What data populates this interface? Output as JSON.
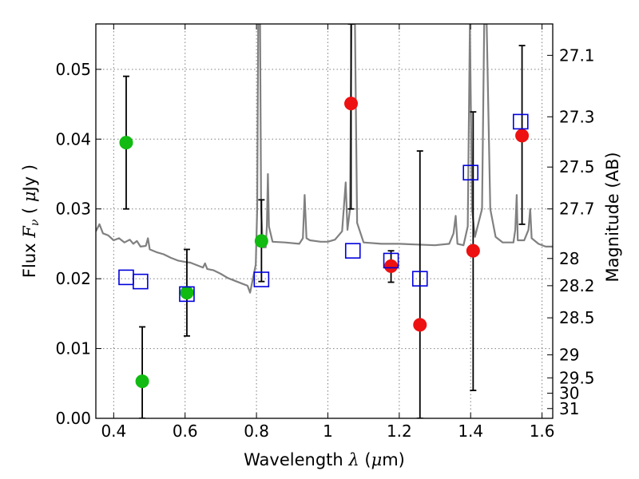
{
  "chart_data": {
    "type": "scatter",
    "title": "",
    "xlabel": "Wavelength  λ (μm)",
    "ylabel_left": "Flux  Fν ( μJy )",
    "ylabel_right": "Magnitude (AB)",
    "xlim": [
      0.35,
      1.63
    ],
    "ylim": [
      0.0,
      0.0565
    ],
    "grid": true,
    "x_ticks": [
      0.4,
      0.6,
      0.8,
      1.0,
      1.2,
      1.4,
      1.6
    ],
    "x_tick_labels": [
      "0.4",
      "0.6",
      "0.8",
      "1",
      "1.2",
      "1.4",
      "1.6"
    ],
    "y_ticks": [
      0.0,
      0.01,
      0.02,
      0.03,
      0.04,
      0.05
    ],
    "y_tick_labels": [
      "0.00",
      "0.01",
      "0.02",
      "0.03",
      "0.04",
      "0.05"
    ],
    "right_ticks": [
      {
        "label": "27.1",
        "flux": 0.052
      },
      {
        "label": "27.3",
        "flux": 0.0432
      },
      {
        "label": "27.5",
        "flux": 0.036
      },
      {
        "label": "27.7",
        "flux": 0.03
      },
      {
        "label": "28",
        "flux": 0.0229
      },
      {
        "label": "28.2",
        "flux": 0.019
      },
      {
        "label": "28.5",
        "flux": 0.0144
      },
      {
        "label": "29",
        "flux": 0.0091
      },
      {
        "label": "29.5",
        "flux": 0.0058
      },
      {
        "label": "30",
        "flux": 0.0036
      },
      {
        "label": "31",
        "flux": 0.0014
      }
    ],
    "colors": {
      "green": "#11bb11",
      "red": "#ee1111",
      "model": "#0000dd",
      "spectrum": "#808080",
      "grid": "#7f7f7f"
    },
    "series": [
      {
        "marker": "green-circle",
        "points": [
          {
            "x": 0.435,
            "y": 0.0395,
            "ylo": 0.03,
            "yhi": 0.049
          },
          {
            "x": 0.48,
            "y": 0.0053,
            "ylo": 0.0,
            "yhi": 0.0131
          },
          {
            "x": 0.605,
            "y": 0.018,
            "ylo": 0.0118,
            "yhi": 0.0242
          },
          {
            "x": 0.814,
            "y": 0.0254,
            "ylo": 0.0196,
            "yhi": 0.0313
          }
        ]
      },
      {
        "marker": "red-circle",
        "points": [
          {
            "x": 1.065,
            "y": 0.0451,
            "ylo": 0.03,
            "yhi": 0.0565
          },
          {
            "x": 1.177,
            "y": 0.0218,
            "ylo": 0.0195,
            "yhi": 0.024
          },
          {
            "x": 1.258,
            "y": 0.0134,
            "ylo": 0.0,
            "yhi": 0.0383
          },
          {
            "x": 1.407,
            "y": 0.024,
            "ylo": 0.004,
            "yhi": 0.0439
          },
          {
            "x": 1.544,
            "y": 0.0405,
            "ylo": 0.0278,
            "yhi": 0.0534
          }
        ]
      },
      {
        "marker": "blue-square",
        "points": [
          {
            "x": 0.435,
            "y": 0.0202
          },
          {
            "x": 0.475,
            "y": 0.0196
          },
          {
            "x": 0.605,
            "y": 0.0178
          },
          {
            "x": 0.814,
            "y": 0.0199
          },
          {
            "x": 1.07,
            "y": 0.024
          },
          {
            "x": 1.177,
            "y": 0.0226
          },
          {
            "x": 1.258,
            "y": 0.02
          },
          {
            "x": 1.4,
            "y": 0.0352
          },
          {
            "x": 1.54,
            "y": 0.0425
          }
        ]
      }
    ],
    "spectrum": [
      [
        0.35,
        0.0268
      ],
      [
        0.36,
        0.0278
      ],
      [
        0.37,
        0.0265
      ],
      [
        0.385,
        0.0262
      ],
      [
        0.4,
        0.0255
      ],
      [
        0.415,
        0.0258
      ],
      [
        0.43,
        0.0252
      ],
      [
        0.445,
        0.0256
      ],
      [
        0.455,
        0.025
      ],
      [
        0.465,
        0.0254
      ],
      [
        0.475,
        0.0246
      ],
      [
        0.49,
        0.0247
      ],
      [
        0.496,
        0.0258
      ],
      [
        0.501,
        0.0242
      ],
      [
        0.52,
        0.0238
      ],
      [
        0.54,
        0.0235
      ],
      [
        0.56,
        0.023
      ],
      [
        0.58,
        0.0226
      ],
      [
        0.6,
        0.0224
      ],
      [
        0.615,
        0.0223
      ],
      [
        0.63,
        0.022
      ],
      [
        0.65,
        0.0216
      ],
      [
        0.656,
        0.0222
      ],
      [
        0.662,
        0.0214
      ],
      [
        0.68,
        0.0212
      ],
      [
        0.7,
        0.0207
      ],
      [
        0.72,
        0.0201
      ],
      [
        0.74,
        0.0197
      ],
      [
        0.76,
        0.0193
      ],
      [
        0.775,
        0.019
      ],
      [
        0.782,
        0.018
      ],
      [
        0.79,
        0.02
      ],
      [
        0.798,
        0.022
      ],
      [
        0.802,
        0.03
      ],
      [
        0.805,
        0.0565
      ],
      [
        0.81,
        0.0565
      ],
      [
        0.813,
        0.03
      ],
      [
        0.818,
        0.0245
      ],
      [
        0.826,
        0.0245
      ],
      [
        0.829,
        0.0275
      ],
      [
        0.832,
        0.035
      ],
      [
        0.835,
        0.0275
      ],
      [
        0.845,
        0.0253
      ],
      [
        0.88,
        0.0252
      ],
      [
        0.92,
        0.025
      ],
      [
        0.93,
        0.0258
      ],
      [
        0.935,
        0.032
      ],
      [
        0.94,
        0.0258
      ],
      [
        0.95,
        0.0255
      ],
      [
        0.98,
        0.0253
      ],
      [
        1.0,
        0.0253
      ],
      [
        1.02,
        0.0256
      ],
      [
        1.04,
        0.0268
      ],
      [
        1.05,
        0.0338
      ],
      [
        1.055,
        0.027
      ],
      [
        1.062,
        0.03
      ],
      [
        1.066,
        0.0565
      ],
      [
        1.076,
        0.0565
      ],
      [
        1.082,
        0.028
      ],
      [
        1.1,
        0.0252
      ],
      [
        1.15,
        0.025
      ],
      [
        1.2,
        0.025
      ],
      [
        1.25,
        0.0249
      ],
      [
        1.3,
        0.0248
      ],
      [
        1.34,
        0.025
      ],
      [
        1.352,
        0.0265
      ],
      [
        1.358,
        0.029
      ],
      [
        1.363,
        0.025
      ],
      [
        1.38,
        0.0248
      ],
      [
        1.392,
        0.0275
      ],
      [
        1.398,
        0.0565
      ],
      [
        1.404,
        0.03
      ],
      [
        1.412,
        0.026
      ],
      [
        1.432,
        0.03
      ],
      [
        1.438,
        0.0565
      ],
      [
        1.445,
        0.0565
      ],
      [
        1.455,
        0.03
      ],
      [
        1.47,
        0.026
      ],
      [
        1.49,
        0.0252
      ],
      [
        1.52,
        0.0252
      ],
      [
        1.525,
        0.027
      ],
      [
        1.529,
        0.032
      ],
      [
        1.532,
        0.0255
      ],
      [
        1.55,
        0.0255
      ],
      [
        1.562,
        0.027
      ],
      [
        1.567,
        0.03
      ],
      [
        1.571,
        0.0258
      ],
      [
        1.59,
        0.025
      ],
      [
        1.61,
        0.0246
      ],
      [
        1.63,
        0.0246
      ]
    ]
  }
}
